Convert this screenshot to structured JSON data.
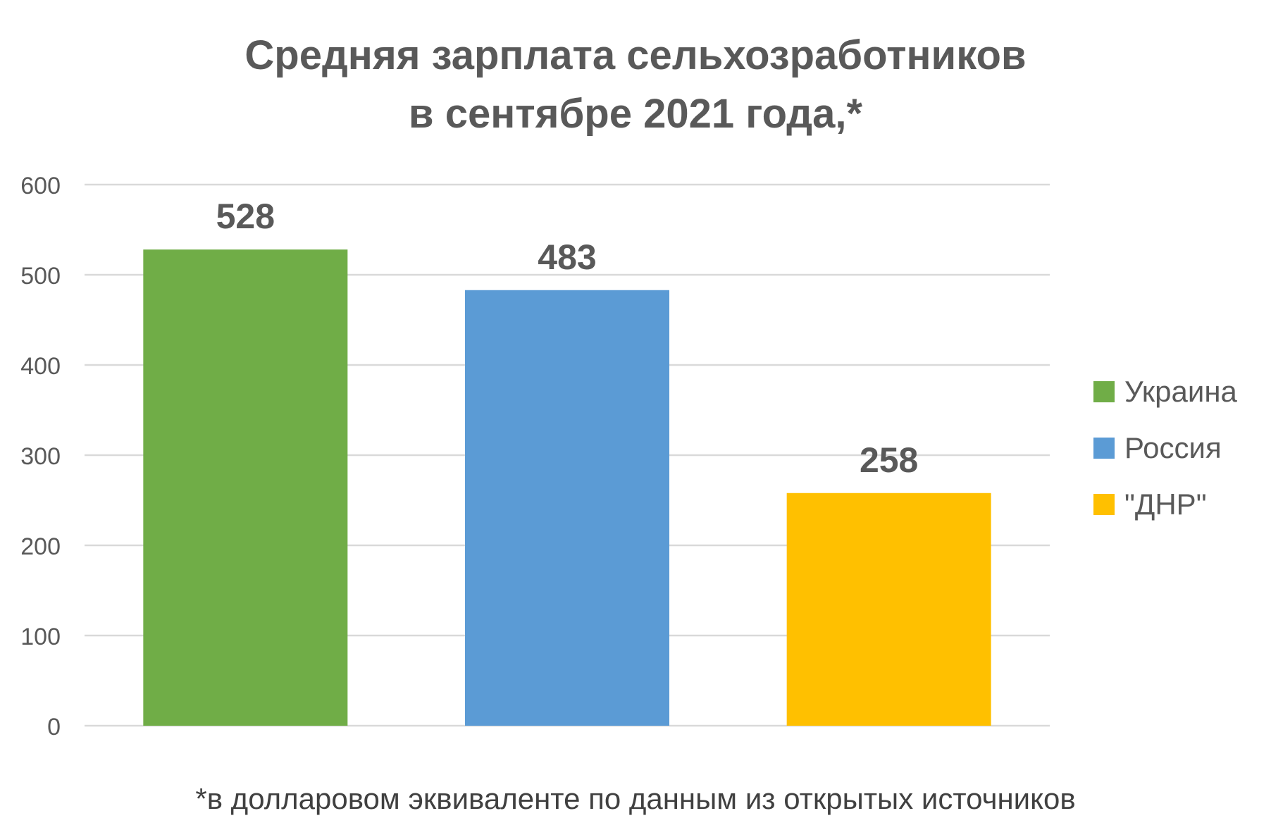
{
  "chart_data": {
    "type": "bar",
    "title": "Средняя зарплата сельхозработников в сентябре 2021 года,*",
    "title_lines": [
      "Средняя зарплата сельхозработников",
      "в сентябре 2021 года,*"
    ],
    "categories": [
      "Украина",
      "Россия",
      "\"ДНР\""
    ],
    "values": [
      528,
      483,
      258
    ],
    "data_labels": [
      "528",
      "483",
      "258"
    ],
    "colors": [
      "#70AD47",
      "#5B9BD5",
      "#FFC000"
    ],
    "yticks": [
      "0",
      "100",
      "200",
      "300",
      "400",
      "500",
      "600"
    ],
    "ylim": [
      0,
      600
    ],
    "grid": true,
    "legend_position": "right",
    "xlabel": "",
    "ylabel": "",
    "footnote": "*в долларовом эквиваленте по данным из открытых источников"
  }
}
